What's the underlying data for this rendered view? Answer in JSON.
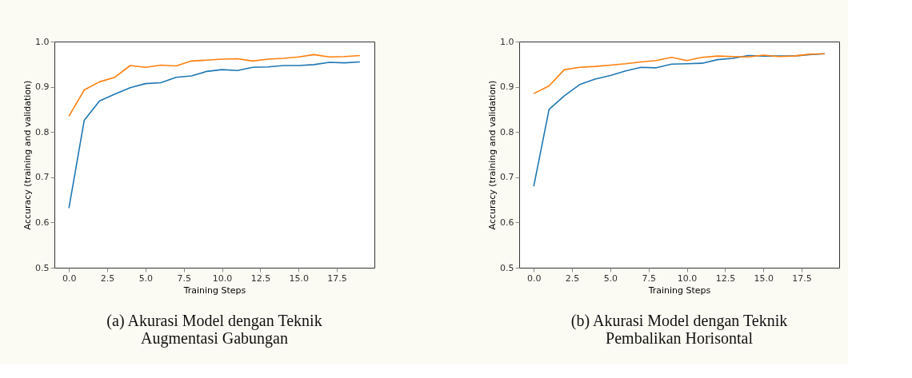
{
  "chart_data": [
    {
      "type": "line",
      "title": "(a) Akurasi Model dengan Teknik\nAugmentasi Gabungan",
      "xlabel": "Training Steps",
      "ylabel": "Accuracy (training and validation)",
      "x": [
        0,
        1,
        2,
        3,
        4,
        5,
        6,
        7,
        8,
        9,
        10,
        11,
        12,
        13,
        14,
        15,
        16,
        17,
        18,
        19
      ],
      "series": [
        {
          "color": "#1f77b4",
          "values": [
            0.632,
            0.826,
            0.869,
            0.884,
            0.898,
            0.907,
            0.909,
            0.921,
            0.924,
            0.934,
            0.938,
            0.936,
            0.943,
            0.944,
            0.947,
            0.947,
            0.949,
            0.954,
            0.953,
            0.955
          ]
        },
        {
          "color": "#ff7f0e",
          "values": [
            0.835,
            0.893,
            0.911,
            0.921,
            0.947,
            0.943,
            0.948,
            0.946,
            0.957,
            0.959,
            0.961,
            0.962,
            0.957,
            0.961,
            0.963,
            0.966,
            0.971,
            0.966,
            0.967,
            0.969
          ]
        }
      ],
      "xlim": [
        -0.95,
        19.95
      ],
      "ylim": [
        0.5,
        1.0
      ],
      "xticks": [
        {
          "value": 0,
          "label": "0.0"
        },
        2.5,
        {
          "value": 5,
          "label": "5.0"
        },
        7.5,
        {
          "value": 10,
          "label": "10.0"
        },
        12.5,
        {
          "value": 15,
          "label": "15.0"
        },
        17.5
      ],
      "yticks": [
        0.5,
        0.6,
        0.7,
        0.8,
        0.9,
        {
          "value": 1,
          "label": "1.0"
        }
      ],
      "grid": false,
      "marker": "none",
      "line_style": "solid"
    },
    {
      "type": "line",
      "title": "(b) Akurasi Model dengan Teknik\nPembalikan Horisontal",
      "xlabel": "Training Steps",
      "ylabel": "Accuracy (training and validation)",
      "x": [
        0,
        1,
        2,
        3,
        4,
        5,
        6,
        7,
        8,
        9,
        10,
        11,
        12,
        13,
        14,
        15,
        16,
        17,
        18,
        19
      ],
      "series": [
        {
          "color": "#1f77b4",
          "values": [
            0.68,
            0.85,
            0.88,
            0.905,
            0.917,
            0.925,
            0.935,
            0.943,
            0.942,
            0.95,
            0.951,
            0.952,
            0.96,
            0.963,
            0.969,
            0.968,
            0.968,
            0.968,
            0.971,
            0.973
          ]
        },
        {
          "color": "#ff7f0e",
          "values": [
            0.885,
            0.902,
            0.938,
            0.943,
            0.945,
            0.948,
            0.951,
            0.955,
            0.958,
            0.965,
            0.958,
            0.965,
            0.968,
            0.967,
            0.966,
            0.97,
            0.967,
            0.968,
            0.972,
            0.973
          ]
        }
      ],
      "xlim": [
        -0.95,
        19.95
      ],
      "ylim": [
        0.5,
        1.0
      ],
      "xticks": [
        {
          "value": 0,
          "label": "0.0"
        },
        2.5,
        {
          "value": 5,
          "label": "5.0"
        },
        7.5,
        {
          "value": 10,
          "label": "10.0"
        },
        12.5,
        {
          "value": 15,
          "label": "15.0"
        },
        17.5
      ],
      "yticks": [
        0.5,
        0.6,
        0.7,
        0.8,
        0.9,
        {
          "value": 1,
          "label": "1.0"
        }
      ],
      "grid": false,
      "marker": "none",
      "line_style": "solid"
    }
  ]
}
